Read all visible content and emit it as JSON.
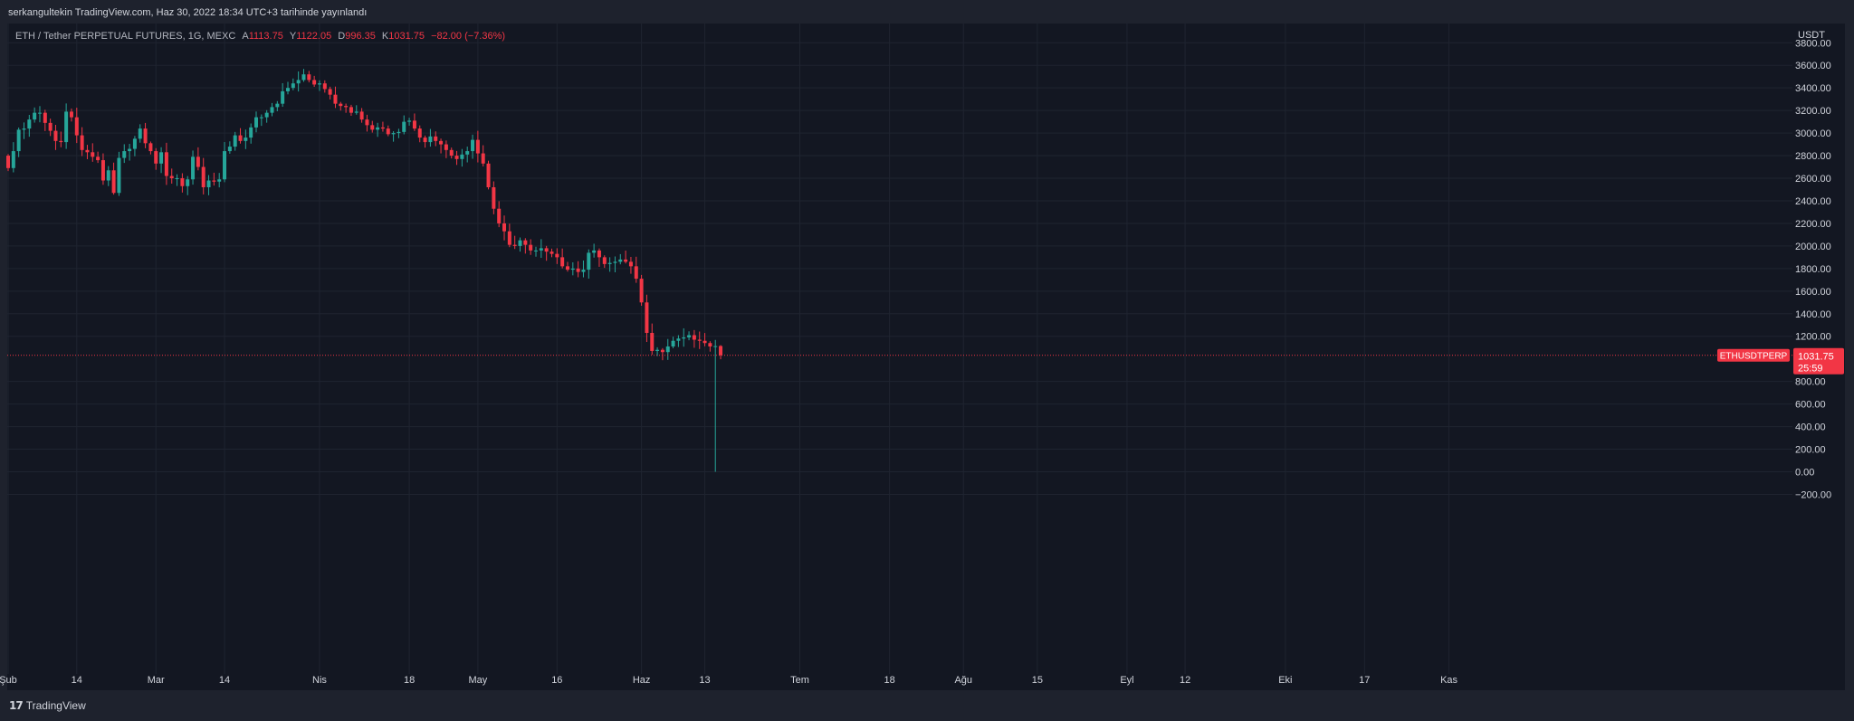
{
  "header": {
    "publish_text": "serkangultekin TradingView.com, Haz 30, 2022 18:34 UTC+3 tarihinde yayınlandı"
  },
  "legend": {
    "symbol": "ETH / Tether PERPETUAL FUTURES, 1G, MEXC",
    "open_label": "A",
    "open": "1113.75",
    "high_label": "Y",
    "high": "1122.05",
    "low_label": "D",
    "low": "996.35",
    "close_label": "K",
    "close": "1031.75",
    "change": "−82.00 (−7.36%)"
  },
  "footer": {
    "brand": "TradingView",
    "logo_icon": "tradingview-logo-icon"
  },
  "colors": {
    "up": "#26a69a",
    "down": "#f23645",
    "background": "#131722",
    "frame": "#1e222d",
    "grid": "#1f2430",
    "axis_text": "#d1d4dc"
  },
  "chart_data": {
    "type": "candlestick",
    "currency_label": "USDT",
    "y_ticks": [
      3800,
      3600,
      3400,
      3200,
      3000,
      2800,
      2600,
      2400,
      2200,
      2000,
      1800,
      1600,
      1400,
      1200,
      800,
      600,
      400,
      200,
      0,
      -200
    ],
    "y_tick_labels": [
      "3800.00",
      "3600.00",
      "3400.00",
      "3200.00",
      "3000.00",
      "2800.00",
      "2600.00",
      "2400.00",
      "2200.00",
      "2000.00",
      "1800.00",
      "1600.00",
      "1400.00",
      "1200.00",
      "800.00",
      "600.00",
      "400.00",
      "200.00",
      "0.00",
      "−200.00"
    ],
    "ylim": [
      -300,
      3900
    ],
    "x_range_days": [
      0,
      196
    ],
    "x_ticks": [
      {
        "label": "Şub",
        "day": 0
      },
      {
        "label": "14",
        "day": 13
      },
      {
        "label": "Mar",
        "day": 28
      },
      {
        "label": "14",
        "day": 41
      },
      {
        "label": "Nis",
        "day": 59
      },
      {
        "label": "18",
        "day": 76
      },
      {
        "label": "May",
        "day": 89
      },
      {
        "label": "16",
        "day": 104
      },
      {
        "label": "Haz",
        "day": 120
      },
      {
        "label": "13",
        "day": 132
      },
      {
        "label": "Tem",
        "day": 150
      },
      {
        "label": "18",
        "day": 167
      },
      {
        "label": "Ağu",
        "day": 181
      },
      {
        "label": "15",
        "day": 195
      },
      {
        "label": "Eyl",
        "day": 212
      },
      {
        "label": "12",
        "day": 223
      },
      {
        "label": "Eki",
        "day": 242
      },
      {
        "label": "17",
        "day": 257
      },
      {
        "label": "Kas",
        "day": 273
      }
    ],
    "last_price": {
      "symbol": "ETHUSDTPERP",
      "value": 1031.75,
      "label": "1031.75",
      "countdown": "25:59"
    },
    "close_series": [
      2690,
      2840,
      3030,
      3040,
      3120,
      3180,
      3180,
      3090,
      3020,
      2930,
      2920,
      3190,
      3140,
      2980,
      2850,
      2830,
      2790,
      2760,
      2580,
      2670,
      2470,
      2780,
      2840,
      2860,
      2950,
      3040,
      2910,
      2840,
      2730,
      2830,
      2620,
      2600,
      2600,
      2530,
      2590,
      2790,
      2700,
      2520,
      2580,
      2570,
      2590,
      2840,
      2880,
      2980,
      2930,
      2960,
      3050,
      3140,
      3140,
      3180,
      3230,
      3260,
      3370,
      3400,
      3440,
      3470,
      3520,
      3470,
      3430,
      3440,
      3390,
      3340,
      3260,
      3240,
      3230,
      3180,
      3190,
      3120,
      3070,
      3030,
      3050,
      3040,
      2990,
      3000,
      3010,
      3100,
      3110,
      3040,
      2960,
      2920,
      2970,
      2930,
      2900,
      2850,
      2800,
      2770,
      2810,
      2840,
      2940,
      2820,
      2730,
      2520,
      2330,
      2200,
      2130,
      2010,
      2000,
      2050,
      2010,
      1960,
      1960,
      1980,
      1950,
      1930,
      1900,
      1820,
      1790,
      1800,
      1770,
      1790,
      1940,
      1960,
      1900,
      1840,
      1850,
      1860,
      1880,
      1860,
      1820,
      1710,
      1500,
      1230,
      1070,
      1080,
      1060,
      1110,
      1160,
      1180,
      1190,
      1210,
      1170,
      1160,
      1140,
      1110,
      1113,
      1032
    ]
  }
}
